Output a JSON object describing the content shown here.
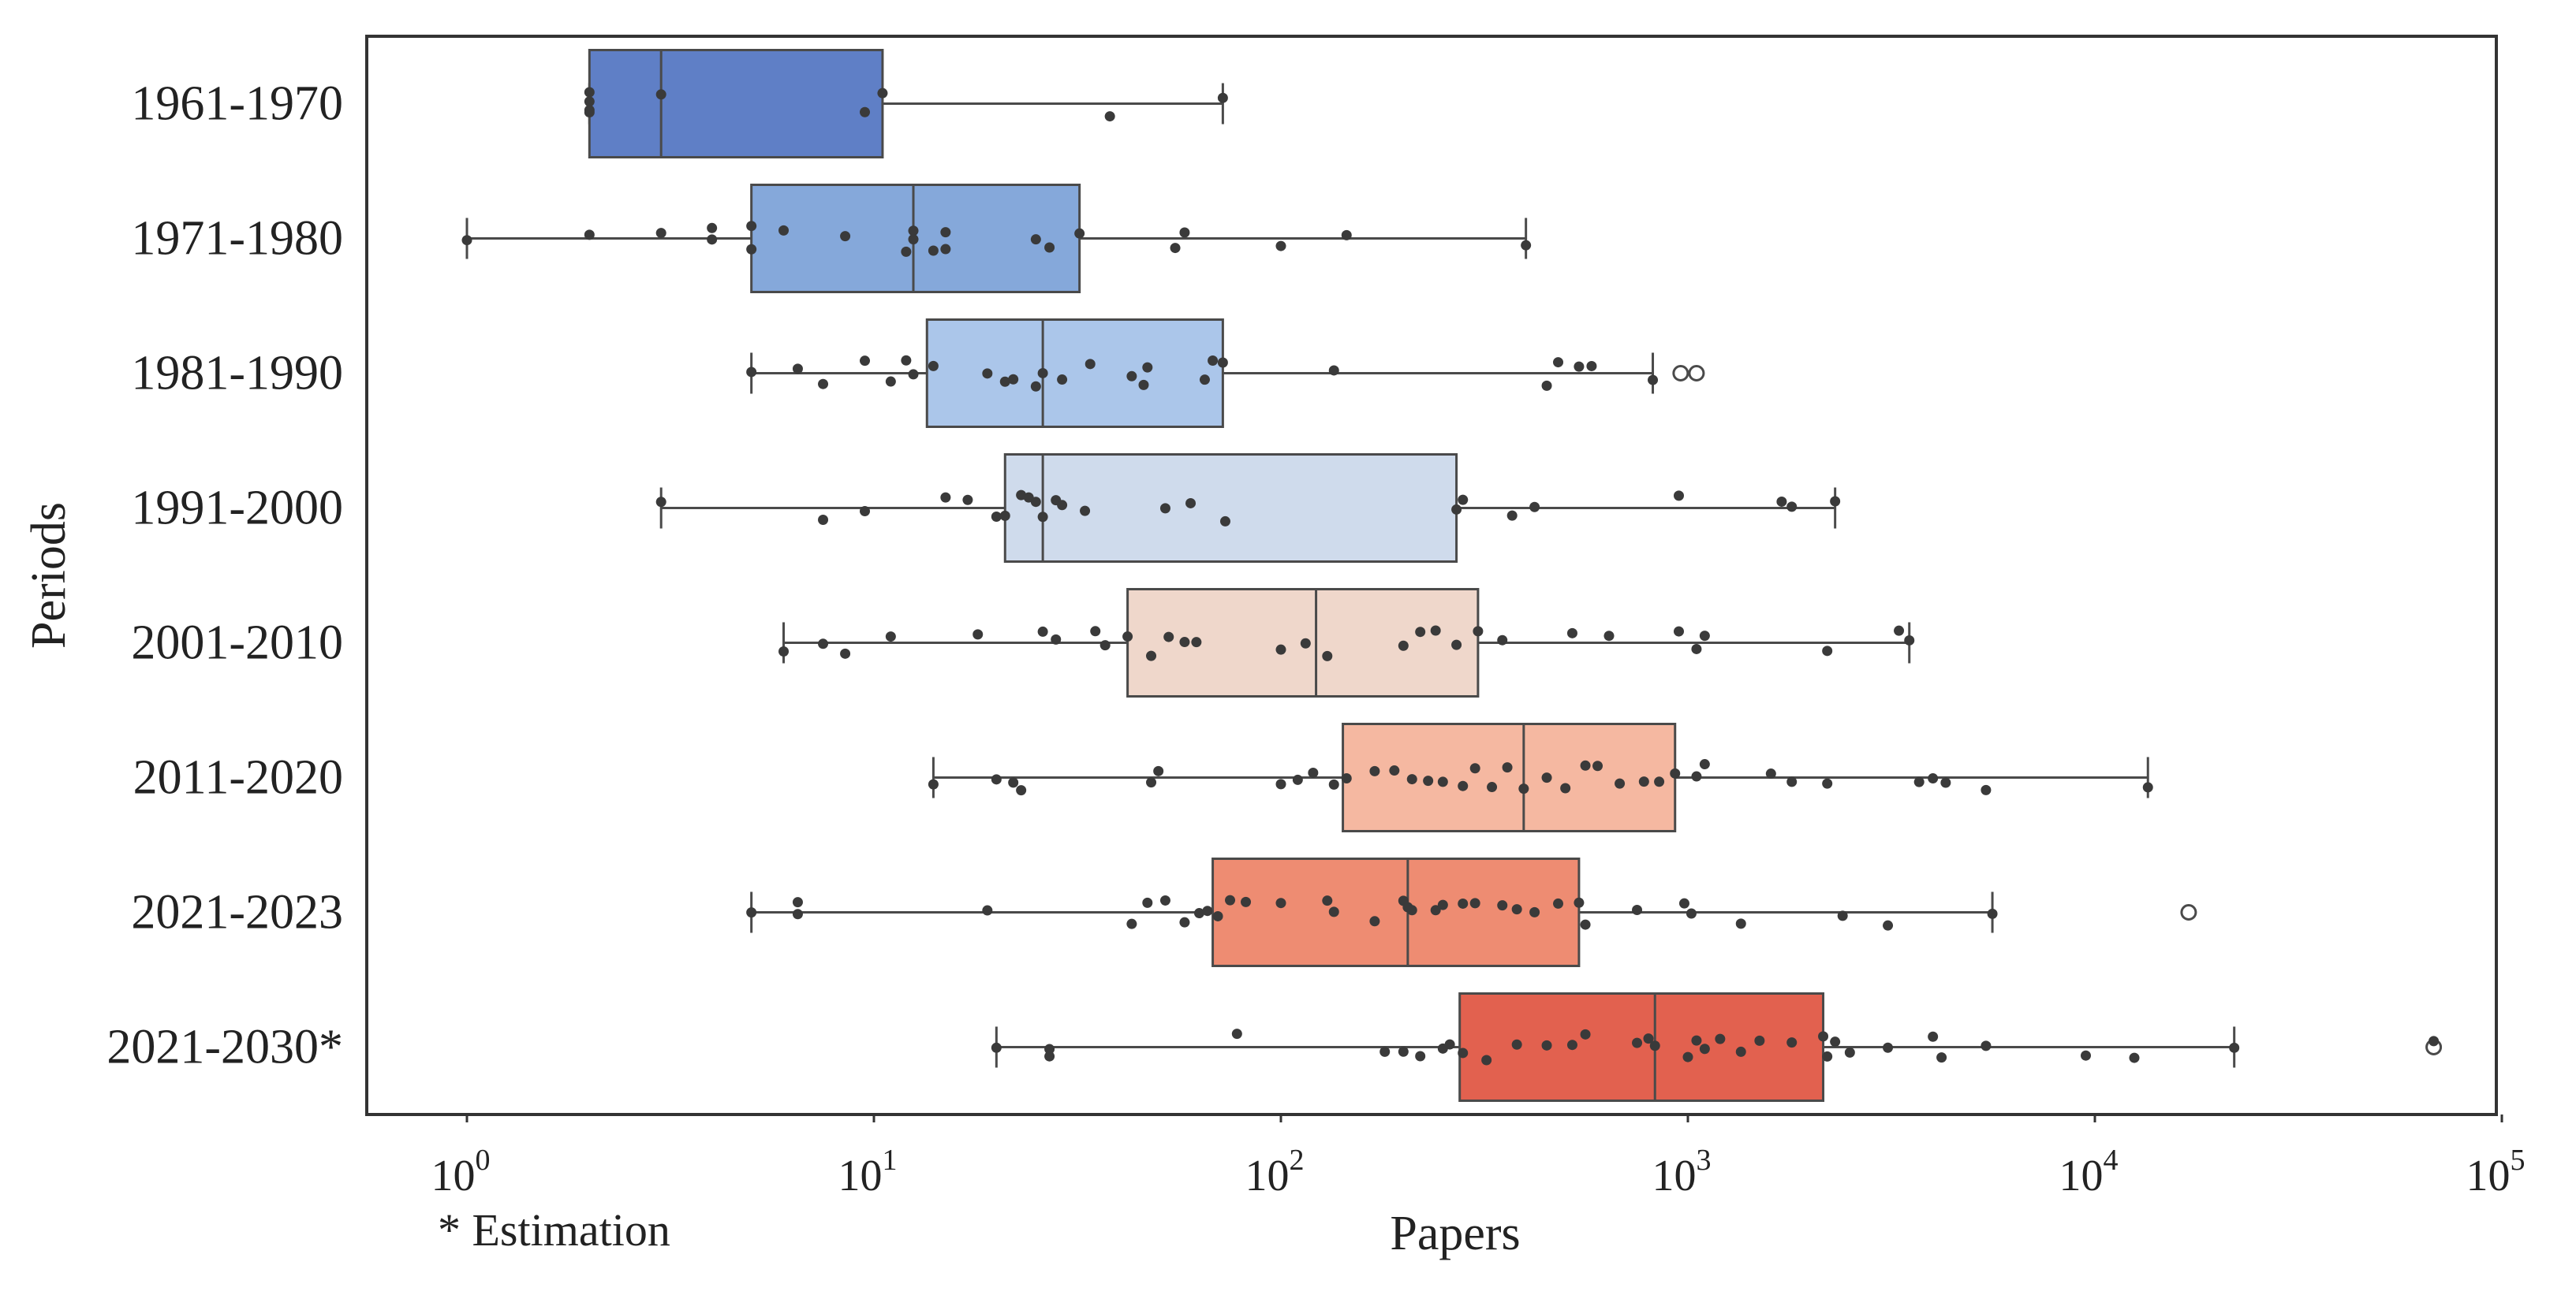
{
  "chart_data": {
    "type": "box",
    "orientation": "horizontal",
    "title": "",
    "xlabel": "Papers",
    "ylabel": "Periods",
    "x_scale": "log",
    "xlim": [
      0.6,
      100000
    ],
    "x_ticks": [
      1,
      10,
      100,
      1000,
      10000,
      100000
    ],
    "x_tick_labels": [
      {
        "base": "10",
        "exp": "0"
      },
      {
        "base": "10",
        "exp": "1"
      },
      {
        "base": "10",
        "exp": "2"
      },
      {
        "base": "10",
        "exp": "3"
      },
      {
        "base": "10",
        "exp": "4"
      },
      {
        "base": "10",
        "exp": "5"
      }
    ],
    "grid": false,
    "legend": "none",
    "footnote": "* Estimation",
    "categories": [
      "1961-1970",
      "1971-1980",
      "1981-1990",
      "1991-2000",
      "2001-2010",
      "2011-2020",
      "2021-2023",
      "2021-2030*"
    ],
    "series": [
      {
        "category": "1961-1970",
        "color": "#5f7fc6",
        "whisker_low": 2,
        "q1": 2,
        "median": 3,
        "q3": 10.5,
        "whisker_high": 72,
        "outliers": [],
        "points": [
          2,
          2,
          2,
          2,
          3,
          9.5,
          10.5,
          38,
          72
        ]
      },
      {
        "category": "1971-1980",
        "color": "#85a8da",
        "whisker_low": 1,
        "q1": 5,
        "median": 12.5,
        "q3": 32,
        "whisker_high": 400,
        "outliers": [],
        "points": [
          1,
          2,
          3,
          4,
          4,
          5,
          5,
          6,
          8.5,
          12,
          12.5,
          12.5,
          14,
          15,
          15,
          25,
          27,
          32,
          55,
          58,
          100,
          145,
          400
        ]
      },
      {
        "category": "1981-1990",
        "color": "#abc6ea",
        "whisker_low": 5,
        "q1": 13.5,
        "median": 26,
        "q3": 72,
        "whisker_high": 820,
        "outliers": [
          960,
          1050
        ],
        "points": [
          5,
          6.5,
          7.5,
          9.5,
          11,
          12,
          12.5,
          14,
          19,
          21,
          22,
          25,
          26,
          29,
          34,
          43,
          46,
          47,
          65,
          68,
          72,
          135,
          450,
          480,
          540,
          580,
          820
        ]
      },
      {
        "category": "1991-2000",
        "color": "#cfdbec",
        "whisker_low": 3,
        "q1": 21,
        "median": 26,
        "q3": 270,
        "whisker_high": 2300,
        "outliers": [],
        "points": [
          3,
          7.5,
          9.5,
          15,
          17,
          20,
          21,
          23,
          24,
          25,
          26,
          28,
          29,
          33,
          52,
          60,
          73,
          270,
          280,
          370,
          420,
          950,
          1700,
          1800,
          2300
        ]
      },
      {
        "category": "2001-2010",
        "color": "#efd7cb",
        "whisker_low": 6,
        "q1": 42,
        "median": 122,
        "q3": 305,
        "whisker_high": 3500,
        "outliers": [],
        "points": [
          6,
          7.5,
          8.5,
          11,
          18,
          26,
          28,
          35,
          37,
          42,
          48,
          53,
          58,
          62,
          100,
          115,
          130,
          200,
          220,
          240,
          270,
          305,
          350,
          520,
          640,
          950,
          1050,
          1100,
          2200,
          3300,
          3500
        ]
      },
      {
        "category": "2011-2020",
        "color": "#f5b8a1",
        "whisker_low": 14,
        "q1": 142,
        "median": 395,
        "q3": 930,
        "whisker_high": 13500,
        "outliers": [],
        "points": [
          14,
          20,
          22,
          23,
          48,
          50,
          100,
          110,
          120,
          135,
          145,
          170,
          190,
          210,
          230,
          250,
          280,
          300,
          330,
          360,
          395,
          450,
          500,
          560,
          600,
          680,
          780,
          850,
          930,
          1050,
          1100,
          1600,
          1800,
          2200,
          3700,
          4000,
          4300,
          5400,
          13500
        ]
      },
      {
        "category": "2021-2023",
        "color": "#ee8c72",
        "whisker_low": 5,
        "q1": 68,
        "median": 205,
        "q3": 540,
        "whisker_high": 5600,
        "outliers": [
          17000
        ],
        "points": [
          5,
          6.5,
          6.5,
          19,
          43,
          47,
          52,
          58,
          63,
          66,
          70,
          75,
          82,
          100,
          130,
          135,
          170,
          200,
          205,
          210,
          240,
          250,
          280,
          300,
          350,
          380,
          420,
          480,
          540,
          560,
          750,
          980,
          1020,
          1350,
          2400,
          3100,
          5600
        ]
      },
      {
        "category": "2021-2030*",
        "color": "#e2614f",
        "whisker_low": 20,
        "q1": 275,
        "median": 830,
        "q3": 2150,
        "whisker_high": 22000,
        "outliers": [
          68000
        ],
        "points": [
          20,
          27,
          27,
          78,
          180,
          200,
          220,
          250,
          260,
          280,
          320,
          380,
          450,
          520,
          560,
          750,
          800,
          830,
          1000,
          1050,
          1100,
          1200,
          1350,
          1500,
          1800,
          2150,
          2200,
          2300,
          2500,
          3100,
          4000,
          4200,
          5400,
          9500,
          12500,
          22000,
          68000
        ]
      }
    ]
  }
}
